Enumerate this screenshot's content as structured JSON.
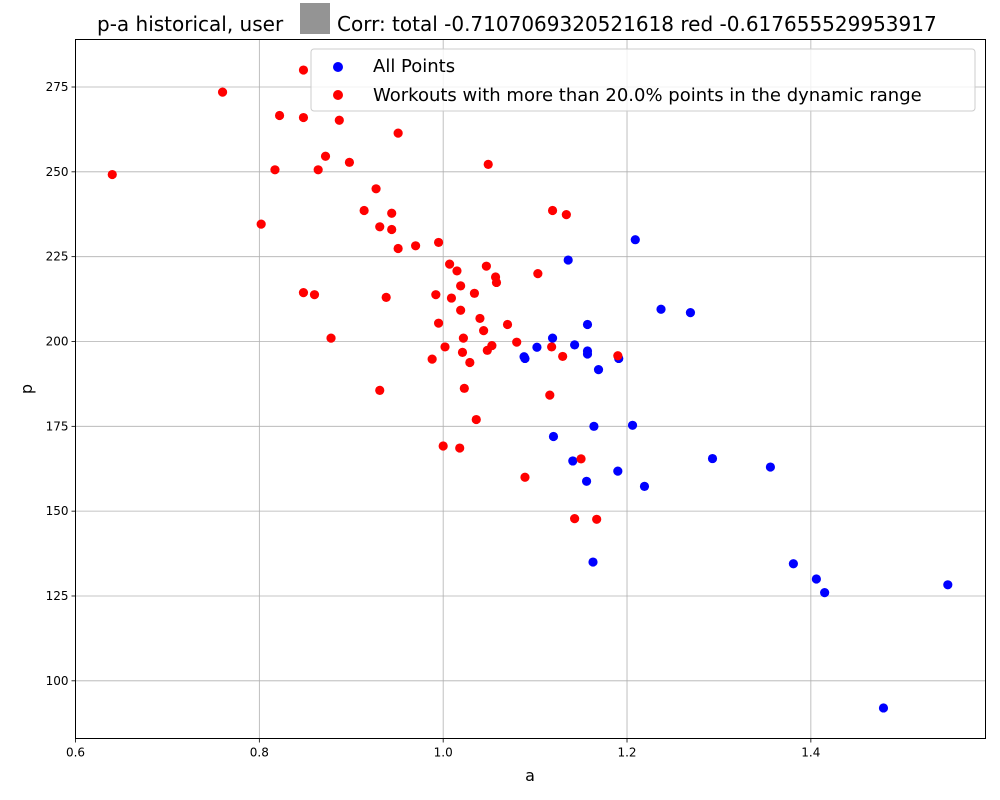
{
  "chart_data": {
    "type": "scatter",
    "title": "p-a historical, user ",
    "title_suffix": "Corr: total -0.7107069320521618 red -0.617655529953917",
    "redacted_color": "#949494",
    "xlabel": "a",
    "ylabel": "p",
    "xlim": [
      0.6,
      1.59
    ],
    "ylim": [
      83,
      289
    ],
    "x_ticks": [
      "0.6",
      "0.8",
      "1.0",
      "1.2",
      "1.4"
    ],
    "x_tick_values": [
      0.6,
      0.8,
      1.0,
      1.2,
      1.4
    ],
    "y_ticks": [
      "100",
      "125",
      "150",
      "175",
      "200",
      "225",
      "250",
      "275"
    ],
    "y_tick_values": [
      100,
      125,
      150,
      175,
      200,
      225,
      250,
      275
    ],
    "grid": true,
    "legend_position": "top-right",
    "series": [
      {
        "name": "All Points",
        "color": "#0000ff",
        "points": [
          [
            1.136,
            224
          ],
          [
            1.209,
            230
          ],
          [
            1.237,
            209.5
          ],
          [
            1.269,
            208.5
          ],
          [
            1.157,
            205
          ],
          [
            1.119,
            201
          ],
          [
            1.143,
            199
          ],
          [
            1.102,
            198.3
          ],
          [
            1.157,
            197.2
          ],
          [
            1.157,
            196.3
          ],
          [
            1.088,
            195.5
          ],
          [
            1.089,
            195
          ],
          [
            1.191,
            195
          ],
          [
            1.169,
            191.7
          ],
          [
            1.164,
            175
          ],
          [
            1.206,
            175.3
          ],
          [
            1.12,
            172
          ],
          [
            1.293,
            165.5
          ],
          [
            1.141,
            164.8
          ],
          [
            1.356,
            163
          ],
          [
            1.19,
            161.8
          ],
          [
            1.156,
            158.8
          ],
          [
            1.219,
            157.3
          ],
          [
            1.163,
            135
          ],
          [
            1.381,
            134.5
          ],
          [
            1.406,
            130
          ],
          [
            1.415,
            126
          ],
          [
            1.549,
            128.3
          ],
          [
            1.479,
            92
          ]
        ]
      },
      {
        "name": "Workouts with more than 20.0% points in the dynamic range",
        "color": "#ff0000",
        "points": [
          [
            0.64,
            249.2
          ],
          [
            0.76,
            273.5
          ],
          [
            0.802,
            234.6
          ],
          [
            0.817,
            250.6
          ],
          [
            0.822,
            266.6
          ],
          [
            0.848,
            280
          ],
          [
            0.848,
            266
          ],
          [
            0.848,
            214.4
          ],
          [
            0.86,
            213.8
          ],
          [
            0.864,
            250.6
          ],
          [
            0.872,
            254.6
          ],
          [
            0.878,
            201
          ],
          [
            0.887,
            265.2
          ],
          [
            0.898,
            252.8
          ],
          [
            0.914,
            238.6
          ],
          [
            0.927,
            245
          ],
          [
            0.931,
            233.8
          ],
          [
            0.931,
            185.6
          ],
          [
            0.938,
            213
          ],
          [
            0.944,
            233
          ],
          [
            0.944,
            237.8
          ],
          [
            0.951,
            261.4
          ],
          [
            0.951,
            227.4
          ],
          [
            0.97,
            228.2
          ],
          [
            0.988,
            194.8
          ],
          [
            0.992,
            213.8
          ],
          [
            0.995,
            229.2
          ],
          [
            0.995,
            205.4
          ],
          [
            1.0,
            169.2
          ],
          [
            1.002,
            198.4
          ],
          [
            1.007,
            222.8
          ],
          [
            1.009,
            212.8
          ],
          [
            1.015,
            220.8
          ],
          [
            1.018,
            168.6
          ],
          [
            1.019,
            216.4
          ],
          [
            1.019,
            209.2
          ],
          [
            1.021,
            196.8
          ],
          [
            1.022,
            201
          ],
          [
            1.023,
            186.2
          ],
          [
            1.029,
            193.8
          ],
          [
            1.034,
            214.2
          ],
          [
            1.036,
            177
          ],
          [
            1.04,
            206.8
          ],
          [
            1.044,
            203.2
          ],
          [
            1.047,
            222.2
          ],
          [
            1.048,
            197.4
          ],
          [
            1.049,
            252.2
          ],
          [
            1.053,
            198.8
          ],
          [
            1.057,
            219
          ],
          [
            1.058,
            217.4
          ],
          [
            1.07,
            205
          ],
          [
            1.08,
            199.8
          ],
          [
            1.089,
            160
          ],
          [
            1.103,
            220
          ],
          [
            1.116,
            184.2
          ],
          [
            1.118,
            198.4
          ],
          [
            1.119,
            238.6
          ],
          [
            1.13,
            195.6
          ],
          [
            1.134,
            237.4
          ],
          [
            1.143,
            147.8
          ],
          [
            1.15,
            165.4
          ],
          [
            1.167,
            147.6
          ],
          [
            1.19,
            195.8
          ]
        ]
      }
    ]
  }
}
